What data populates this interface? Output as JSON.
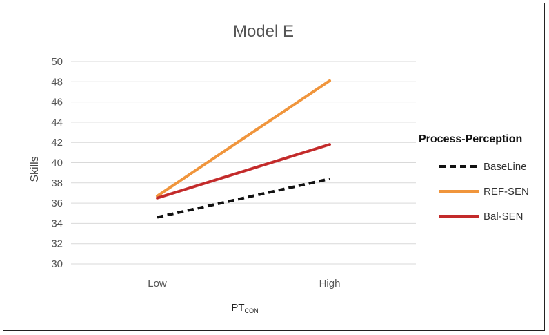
{
  "chart_data": {
    "type": "line",
    "title": "Model E",
    "xlabel": "PT",
    "xlabel_subscript": "CON",
    "ylabel": "Skills",
    "categories": [
      "Low",
      "High"
    ],
    "ylim": [
      30,
      50
    ],
    "yticks": [
      30,
      32,
      34,
      36,
      38,
      40,
      42,
      44,
      46,
      48,
      50
    ],
    "grid": true,
    "legend": {
      "title": "Process-Perception",
      "position": "right"
    },
    "series": [
      {
        "name": "BaseLine",
        "values": [
          34.6,
          38.4
        ],
        "color": "#111111",
        "dashed": true
      },
      {
        "name": "REF-SEN",
        "values": [
          36.7,
          48.1
        ],
        "color": "#F0953C",
        "dashed": false
      },
      {
        "name": "Bal-SEN",
        "values": [
          36.5,
          41.8
        ],
        "color": "#C32A2A",
        "dashed": false
      }
    ]
  }
}
